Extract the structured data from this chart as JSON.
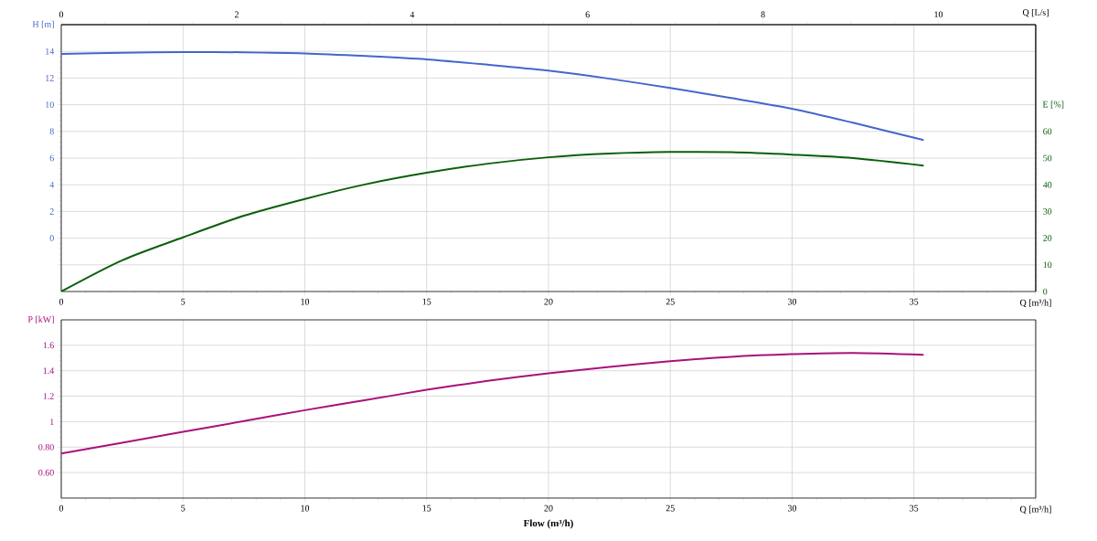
{
  "chart_data": [
    {
      "type": "line",
      "xlabel": "Q [m³/h]",
      "ylabel": "H [m]",
      "y2label": "E [%]",
      "x2label": "Q [L/s]",
      "x": [
        0,
        2.5,
        5,
        7.5,
        10,
        12.5,
        15,
        17.5,
        20,
        22.5,
        25,
        27.5,
        30,
        32.5,
        35.4
      ],
      "series": [
        {
          "color": "#4466cc",
          "values": [
            13.8,
            13.9,
            13.95,
            13.93,
            13.85,
            13.65,
            13.4,
            13.0,
            12.55,
            11.95,
            11.25,
            10.5,
            9.7,
            8.65,
            7.35
          ]
        },
        {
          "color": "#0b5e0b",
          "axis": "y2",
          "values": [
            0,
            11.7,
            20.3,
            28.4,
            34.7,
            40.2,
            44.5,
            47.9,
            50.3,
            51.7,
            52.3,
            52.2,
            51.3,
            50,
            47.2
          ]
        }
      ],
      "xlim": [
        0,
        40
      ],
      "xticks": [
        0,
        5,
        10,
        15,
        20,
        25,
        30,
        35,
        {
          "value": 40,
          "label": null
        }
      ],
      "ylim": [
        -4,
        16
      ],
      "yticks": [
        {
          "value": -2,
          "label": null
        },
        0,
        2,
        4,
        6,
        8,
        10,
        12,
        14
      ],
      "y2lim": [
        0,
        100
      ],
      "y2ticks": [
        0,
        10,
        20,
        30,
        40,
        50,
        60
      ],
      "x2lim": [
        0,
        11.11
      ],
      "x2ticks": [
        0,
        2,
        4,
        6,
        8,
        10
      ],
      "grid": true
    },
    {
      "type": "line",
      "xlabel": "Q [m³/h]",
      "ylabel": "P [kW]",
      "x": [
        0,
        2.5,
        5,
        7.5,
        10,
        12.5,
        15,
        17.5,
        20,
        22.5,
        25,
        27.5,
        30,
        32.5,
        35.4
      ],
      "series": [
        {
          "color": "#a8127a",
          "values": [
            0.75,
            0.835,
            0.92,
            1.005,
            1.09,
            1.17,
            1.25,
            1.32,
            1.38,
            1.43,
            1.475,
            1.51,
            1.53,
            1.54,
            1.525
          ]
        }
      ],
      "xlim": [
        0,
        40
      ],
      "xticks": [
        0,
        5,
        10,
        15,
        20,
        25,
        30,
        35,
        {
          "value": 40,
          "label": null
        }
      ],
      "ylim": [
        0.4,
        1.8
      ],
      "yticks": [
        {
          "value": 0.6,
          "label": "0.60"
        },
        {
          "value": 0.8,
          "label": "0.80"
        },
        1,
        1.2,
        1.4,
        1.6
      ],
      "grid": true,
      "annotations": [
        "Flow (m³/h)"
      ]
    }
  ]
}
